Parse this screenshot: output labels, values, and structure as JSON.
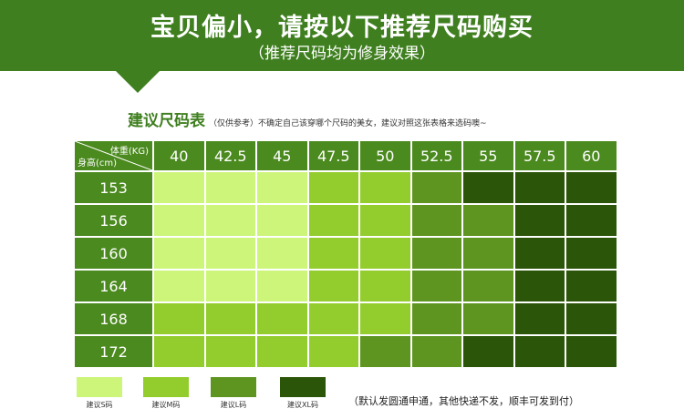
{
  "banner": {
    "title": "宝贝偏小，请按以下推荐尺码购买",
    "subtitle": "（推荐尺码均为修身效果）"
  },
  "section": {
    "title": "建议尺码表",
    "note": "（仅供参考）不确定自己该穿哪个尺码的美女，建议对照这张表格来选码噢~"
  },
  "table": {
    "corner_top": "体重(KG)",
    "corner_bottom": "身高(cm)",
    "weights": [
      "40",
      "42.5",
      "45",
      "47.5",
      "50",
      "52.5",
      "55",
      "57.5",
      "60"
    ],
    "heights": [
      "153",
      "156",
      "160",
      "164",
      "168",
      "172"
    ],
    "sizes": [
      [
        "S",
        "S",
        "S",
        "M",
        "M",
        "L",
        "XL",
        "XL",
        "XL"
      ],
      [
        "S",
        "S",
        "S",
        "M",
        "M",
        "L",
        "L",
        "XL",
        "XL"
      ],
      [
        "S",
        "S",
        "S",
        "M",
        "M",
        "L",
        "L",
        "XL",
        "XL"
      ],
      [
        "S",
        "S",
        "S",
        "M",
        "M",
        "L",
        "L",
        "XL",
        "XL"
      ],
      [
        "M",
        "M",
        "M",
        "M",
        "M",
        "L",
        "L",
        "XL",
        "XL"
      ],
      [
        "M",
        "M",
        "M",
        "M",
        "L",
        "L",
        "XL",
        "XL",
        "XL"
      ]
    ]
  },
  "colors": {
    "S": "#ccf57a",
    "M": "#93cc2d",
    "L": "#5e9521",
    "XL": "#2b5508",
    "header": "#4b8a1f",
    "banner": "#3f7f1f"
  },
  "legend": [
    {
      "key": "S",
      "label": "建议S码"
    },
    {
      "key": "M",
      "label": "建议M码"
    },
    {
      "key": "L",
      "label": "建议L码"
    },
    {
      "key": "XL",
      "label": "建议XL码"
    }
  ],
  "shipping_note": "（默认发圆通申通，其他快递不发，顺丰可发到付）"
}
